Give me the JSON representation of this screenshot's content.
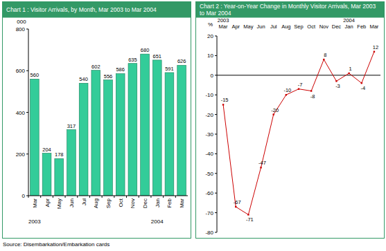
{
  "chart_data": [
    {
      "type": "bar",
      "title": "Chart 1 : Visitor Arrivals, by Month, Mar 2003 to Mar 2004",
      "ylabel": "000",
      "categories": [
        "Mar",
        "Apr",
        "May",
        "Jun",
        "Jul",
        "Aug",
        "Sep",
        "Oct",
        "Nov",
        "Dec",
        "Jan",
        "Feb",
        "Mar"
      ],
      "values": [
        560,
        204,
        178,
        317,
        540,
        602,
        556,
        586,
        635,
        680,
        651,
        591,
        626
      ],
      "color": "#33cc99",
      "ylim": [
        0,
        800
      ],
      "yticks": [
        0,
        200,
        400,
        600,
        800
      ],
      "data_labels": true,
      "year_labels": [
        {
          "label": "2003",
          "category": 0
        },
        {
          "label": "2004",
          "category": 10
        }
      ]
    },
    {
      "type": "line",
      "title": "Chart 2 : Year-on-Year Change in Monthly Visitor Arrivals, Mar 2003 to Mar 2004",
      "ylabel": "%",
      "categories": [
        "Mar",
        "Apr",
        "May",
        "Jun",
        "Jul",
        "Aug",
        "Sep",
        "Oct",
        "Nov",
        "Dec",
        "Jan",
        "Feb",
        "Mar"
      ],
      "values": [
        -15,
        -67,
        -71,
        -47,
        -20,
        -10,
        -7,
        -8,
        8,
        -3,
        1,
        -4,
        12
      ],
      "color": "#cc0000",
      "marker": "square",
      "ylim": [
        -80,
        20
      ],
      "yticks": [
        -80,
        -70,
        -60,
        -50,
        -40,
        -30,
        -20,
        -10,
        0,
        10,
        20
      ],
      "data_labels": true,
      "year_labels": [
        {
          "label": "2003",
          "category": 0
        },
        {
          "label": "2004",
          "category": 10
        }
      ]
    }
  ],
  "source": "Source: Disembarkation/Embarkation cards"
}
